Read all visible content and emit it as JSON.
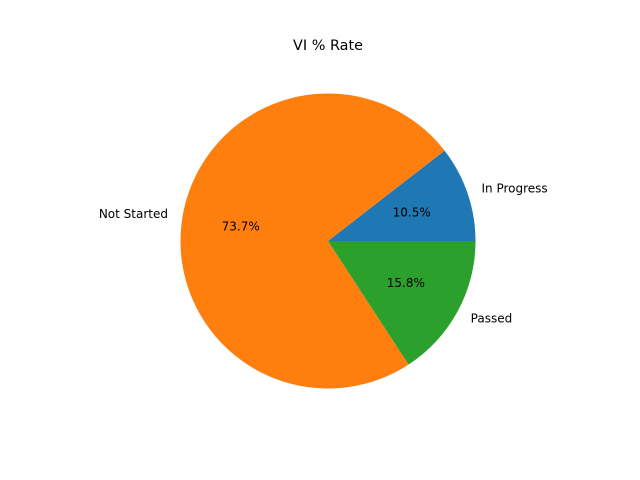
{
  "chart_data": {
    "type": "pie",
    "title": "VI % Rate",
    "slices": [
      {
        "label": "In Progress",
        "value": 10.5,
        "pct_label": "10.5%",
        "color": "#1f77b4"
      },
      {
        "label": "Not Started",
        "value": 73.7,
        "pct_label": "73.7%",
        "color": "#ff7f0e"
      },
      {
        "label": "Passed",
        "value": 15.8,
        "pct_label": "15.8%",
        "color": "#2ca02c"
      }
    ],
    "start_angle_deg": 0,
    "direction": "counterclockwise",
    "legend": "none",
    "grid": false
  }
}
